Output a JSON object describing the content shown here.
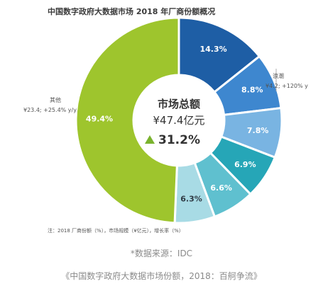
{
  "chart_data": {
    "type": "pie",
    "title": "中国数字政府大数据市场 2018 年厂商份额概况",
    "unit": "%",
    "slices": [
      {
        "label": "14.3%",
        "value": 14.3,
        "color": "#1e5ea5"
      },
      {
        "label": "8.8%",
        "value": 8.8,
        "color": "#3e87cf"
      },
      {
        "label": "7.8%",
        "value": 7.8,
        "color": "#79b4e2"
      },
      {
        "label": "6.9%",
        "value": 6.9,
        "color": "#26a6b7"
      },
      {
        "label": "6.6%",
        "value": 6.6,
        "color": "#5fc0cf"
      },
      {
        "label": "6.3%",
        "value": 6.3,
        "color": "#a8dbe5"
      },
      {
        "label": "49.4%",
        "value": 49.4,
        "color": "#9ec52d"
      }
    ],
    "center": {
      "title": "市场总额",
      "total": "¥47.4亿元",
      "growth": "31.2%",
      "growth_color": "#7ab32e"
    },
    "annotations": {
      "langchao": {
        "name": "浪潮",
        "detail": "¥4.2; +120% y/y"
      },
      "others": {
        "name": "其他",
        "detail": "¥23.4; +25.4% y/y"
      }
    },
    "footnote": "注：2018 厂商份额（%），市场规模（¥亿元），增长率（%）"
  },
  "source_text": "*数据来源：IDC",
  "caption": "《中国数字政府大数据市场份额，2018：百舸争流》"
}
